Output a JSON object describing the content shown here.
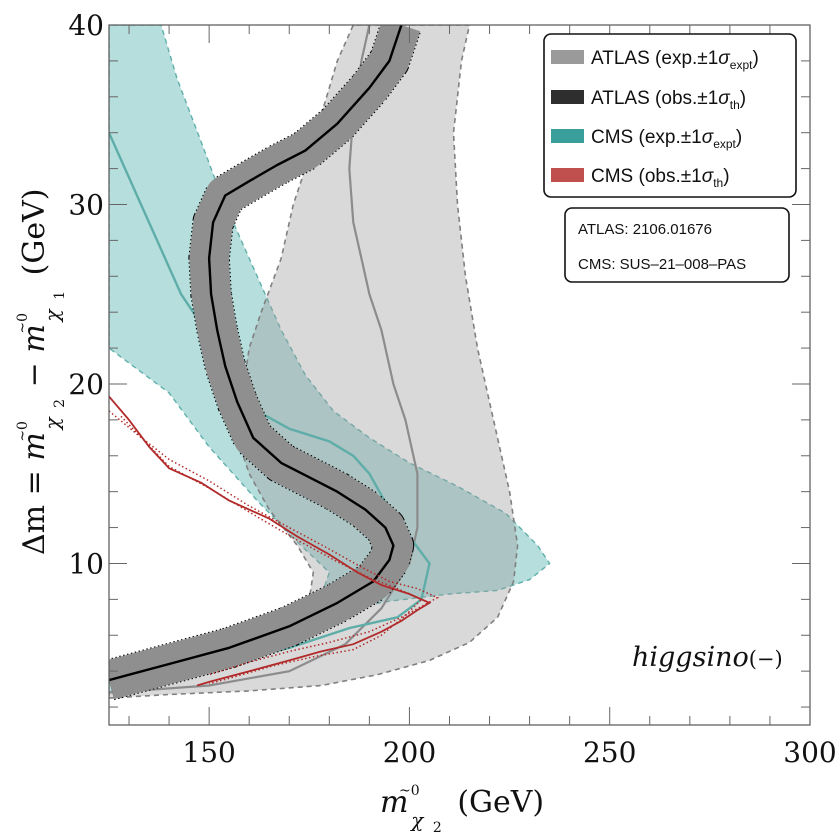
{
  "chart_data": {
    "type": "line",
    "xlim": [
      125,
      300
    ],
    "ylim": [
      1,
      40
    ],
    "x_ticks": [
      150,
      200,
      250,
      300
    ],
    "x_tick_labels": [
      "150",
      "200",
      "250",
      "300"
    ],
    "y_ticks": [
      10,
      20,
      30,
      40
    ],
    "y_tick_labels": [
      "10",
      "20",
      "30",
      "40"
    ],
    "xlabel": {
      "m": "m",
      "tilde": "~0",
      "sub": "χ",
      "subsub": "2",
      "unit": "(GeV)"
    },
    "ylabel": {
      "prefix": "Δm = ",
      "m1": "m",
      "tilde1": "~0",
      "sub1": "χ",
      "subsub1": "2",
      "minus": "−",
      "m2": "m",
      "tilde2": "~0",
      "sub2": "χ",
      "subsub2": "1",
      "unit": "(GeV)"
    },
    "legend": [
      {
        "label": "ATLAS (exp.±1",
        "sigma": "σ",
        "sub": "expt",
        "close": ")",
        "color": "#9a9a9a"
      },
      {
        "label": "ATLAS (obs.±1",
        "sigma": "σ",
        "sub": "th",
        "close": ")",
        "color": "#2e2e2e"
      },
      {
        "label": "CMS (exp.±1",
        "sigma": "σ",
        "sub": "expt",
        "close": ")",
        "color": "#3a9e9a"
      },
      {
        "label": "CMS (obs.±1",
        "sigma": "σ",
        "sub": "th",
        "close": ")",
        "color": "#c0504d"
      }
    ],
    "references": [
      "ATLAS: 2106.01676",
      "CMS: SUS–21–008–PAS"
    ],
    "model_label": {
      "text": "higgsino",
      "suffix": "(−)"
    },
    "colors": {
      "cms_band_fill": "#b2dcda",
      "cms_band_edge": "#5fb0ab",
      "cms_exp_line": "#5fada9",
      "atlas_band_fill": "#d8d8d8",
      "atlas_band_edge": "#808080",
      "atlas_exp_line": "#8c8c8c",
      "atlas_obs_band": "#8f8f8f",
      "atlas_obs_line": "#000000",
      "cms_obs_line": "#b22a2a"
    },
    "series": [
      {
        "name": "CMS expected ±1σ band",
        "kind": "band",
        "points": [
          [
            125,
            3.5
          ],
          [
            135,
            4
          ],
          [
            145,
            4.4
          ],
          [
            155,
            5.3
          ],
          [
            165,
            6.2
          ],
          [
            178,
            7.2
          ],
          [
            195,
            7.9
          ],
          [
            210,
            8.3
          ],
          [
            222,
            8.5
          ],
          [
            230,
            9.1
          ],
          [
            235,
            10
          ],
          [
            232,
            11
          ],
          [
            224,
            12.8
          ],
          [
            212,
            14.3
          ],
          [
            200,
            15.6
          ],
          [
            190,
            17
          ],
          [
            181,
            18.5
          ],
          [
            174,
            20.5
          ],
          [
            168,
            23
          ],
          [
            163,
            25.5
          ],
          [
            158,
            28
          ],
          [
            153,
            30.5
          ],
          [
            148,
            33.5
          ],
          [
            142,
            37
          ],
          [
            138,
            40
          ],
          [
            125,
            40
          ],
          [
            125,
            22
          ],
          [
            140,
            19.5
          ],
          [
            150,
            16.5
          ],
          [
            162,
            13.5
          ],
          [
            172,
            11.2
          ],
          [
            180,
            9.5
          ],
          [
            178,
            8.2
          ],
          [
            165,
            7.1
          ],
          [
            150,
            5.6
          ],
          [
            138,
            4.2
          ],
          [
            125,
            2.8
          ]
        ]
      },
      {
        "name": "ATLAS expected ±1σ band",
        "kind": "band",
        "points": [
          [
            125,
            2.5
          ],
          [
            140,
            2.7
          ],
          [
            160,
            2.9
          ],
          [
            178,
            3.2
          ],
          [
            192,
            3.8
          ],
          [
            205,
            4.6
          ],
          [
            215,
            5.6
          ],
          [
            222,
            7
          ],
          [
            226,
            9
          ],
          [
            227,
            11
          ],
          [
            225,
            14
          ],
          [
            221,
            18
          ],
          [
            217,
            22
          ],
          [
            214,
            26
          ],
          [
            212,
            30
          ],
          [
            211,
            34
          ],
          [
            213,
            38
          ],
          [
            215,
            40
          ],
          [
            186,
            40
          ],
          [
            182,
            38
          ],
          [
            178,
            35
          ],
          [
            174,
            32
          ],
          [
            171,
            30
          ],
          [
            168,
            27
          ],
          [
            163,
            24
          ],
          [
            160,
            22
          ],
          [
            158,
            19
          ],
          [
            157,
            17
          ],
          [
            160,
            15
          ],
          [
            165,
            13
          ],
          [
            172,
            11
          ],
          [
            176,
            9.5
          ],
          [
            175,
            8
          ],
          [
            168,
            6.5
          ],
          [
            158,
            5.3
          ],
          [
            145,
            4.2
          ],
          [
            133,
            3.2
          ],
          [
            125,
            2.9
          ]
        ]
      },
      {
        "name": "ATLAS expected",
        "kind": "line",
        "points": [
          [
            125,
            2.8
          ],
          [
            150,
            3.2
          ],
          [
            170,
            4
          ],
          [
            184,
            5.5
          ],
          [
            193,
            7.5
          ],
          [
            200,
            10
          ],
          [
            202,
            12
          ],
          [
            202,
            15
          ],
          [
            199,
            18
          ],
          [
            196,
            20
          ],
          [
            193,
            23
          ],
          [
            190,
            25
          ],
          [
            188,
            27
          ],
          [
            186,
            29
          ],
          [
            185,
            32
          ],
          [
            186,
            35
          ],
          [
            188,
            38
          ],
          [
            190,
            40
          ]
        ]
      },
      {
        "name": "CMS expected",
        "kind": "line",
        "points": [
          [
            125,
            34
          ],
          [
            129,
            32
          ],
          [
            133,
            30
          ],
          [
            138,
            27.5
          ],
          [
            143,
            25
          ],
          [
            149,
            23
          ],
          [
            155,
            20.5
          ],
          [
            162,
            18.5
          ],
          [
            170,
            17.5
          ],
          [
            180,
            16.8
          ],
          [
            186,
            16
          ],
          [
            190,
            15
          ],
          [
            195,
            13
          ],
          [
            200,
            11.5
          ],
          [
            205,
            10
          ],
          [
            203,
            8
          ],
          [
            197,
            7
          ],
          [
            185,
            6.4
          ],
          [
            170,
            5.3
          ],
          [
            155,
            4.5
          ],
          [
            145,
            3.8
          ],
          [
            137,
            3.6
          ],
          [
            125,
            3.4
          ]
        ]
      },
      {
        "name": "ATLAS observed",
        "kind": "line",
        "band_width": 1.1,
        "points": [
          [
            125,
            3.5
          ],
          [
            140,
            4.4
          ],
          [
            155,
            5.3
          ],
          [
            170,
            6.5
          ],
          [
            182,
            7.8
          ],
          [
            191,
            9
          ],
          [
            195,
            10.2
          ],
          [
            196,
            11
          ],
          [
            194,
            12
          ],
          [
            189,
            13
          ],
          [
            182,
            14
          ],
          [
            175,
            14.8
          ],
          [
            168,
            15.6
          ],
          [
            161,
            17
          ],
          [
            157,
            19
          ],
          [
            154,
            21
          ],
          [
            152,
            23
          ],
          [
            150.5,
            25
          ],
          [
            150,
            27
          ],
          [
            151,
            29
          ],
          [
            154,
            30.5
          ],
          [
            160,
            31.3
          ],
          [
            167,
            32.2
          ],
          [
            174,
            33
          ],
          [
            182,
            34.5
          ],
          [
            190,
            36.5
          ],
          [
            195,
            38
          ],
          [
            198,
            40
          ]
        ]
      },
      {
        "name": "CMS observed",
        "kind": "line",
        "points": [
          [
            125,
            19.3
          ],
          [
            130,
            18
          ],
          [
            135,
            16.5
          ],
          [
            140,
            15.3
          ],
          [
            148,
            14.5
          ],
          [
            155,
            13.5
          ],
          [
            165,
            12.5
          ],
          [
            172,
            11.5
          ],
          [
            180,
            10.5
          ],
          [
            187,
            9.5
          ],
          [
            193,
            8.8
          ],
          [
            200,
            8.3
          ],
          [
            205,
            7.8
          ],
          [
            202,
            7.4
          ],
          [
            198,
            6.8
          ],
          [
            193,
            6.2
          ],
          [
            186,
            5.5
          ],
          [
            178,
            5.1
          ],
          [
            170,
            4.6
          ],
          [
            160,
            4
          ],
          [
            150,
            3.4
          ],
          [
            147,
            3.2
          ]
        ]
      },
      {
        "name": "CMS observed +1σ",
        "kind": "dotted",
        "points": [
          [
            125,
            18.5
          ],
          [
            132,
            17.2
          ],
          [
            140,
            15.8
          ],
          [
            150,
            14.6
          ],
          [
            160,
            13.2
          ],
          [
            170,
            12
          ],
          [
            180,
            10.8
          ],
          [
            188,
            9.8
          ],
          [
            195,
            9
          ],
          [
            202,
            8.6
          ],
          [
            207,
            8.1
          ],
          [
            203,
            7.6
          ],
          [
            198,
            7
          ],
          [
            190,
            6.2
          ],
          [
            180,
            5.6
          ],
          [
            170,
            5.1
          ],
          [
            160,
            4.5
          ],
          [
            150,
            3.8
          ]
        ]
      },
      {
        "name": "CMS observed -1σ",
        "kind": "dotted",
        "points": [
          [
            128,
            18.2
          ],
          [
            140,
            15.4
          ],
          [
            150,
            14.2
          ],
          [
            162,
            12.6
          ],
          [
            172,
            11.3
          ],
          [
            182,
            10.1
          ],
          [
            190,
            9.2
          ],
          [
            197,
            8.6
          ],
          [
            203,
            8
          ],
          [
            199,
            7.1
          ],
          [
            193,
            6
          ],
          [
            186,
            5.2
          ],
          [
            176,
            4.8
          ],
          [
            166,
            4.3
          ],
          [
            155,
            3.6
          ],
          [
            150,
            3.3
          ]
        ]
      }
    ]
  }
}
